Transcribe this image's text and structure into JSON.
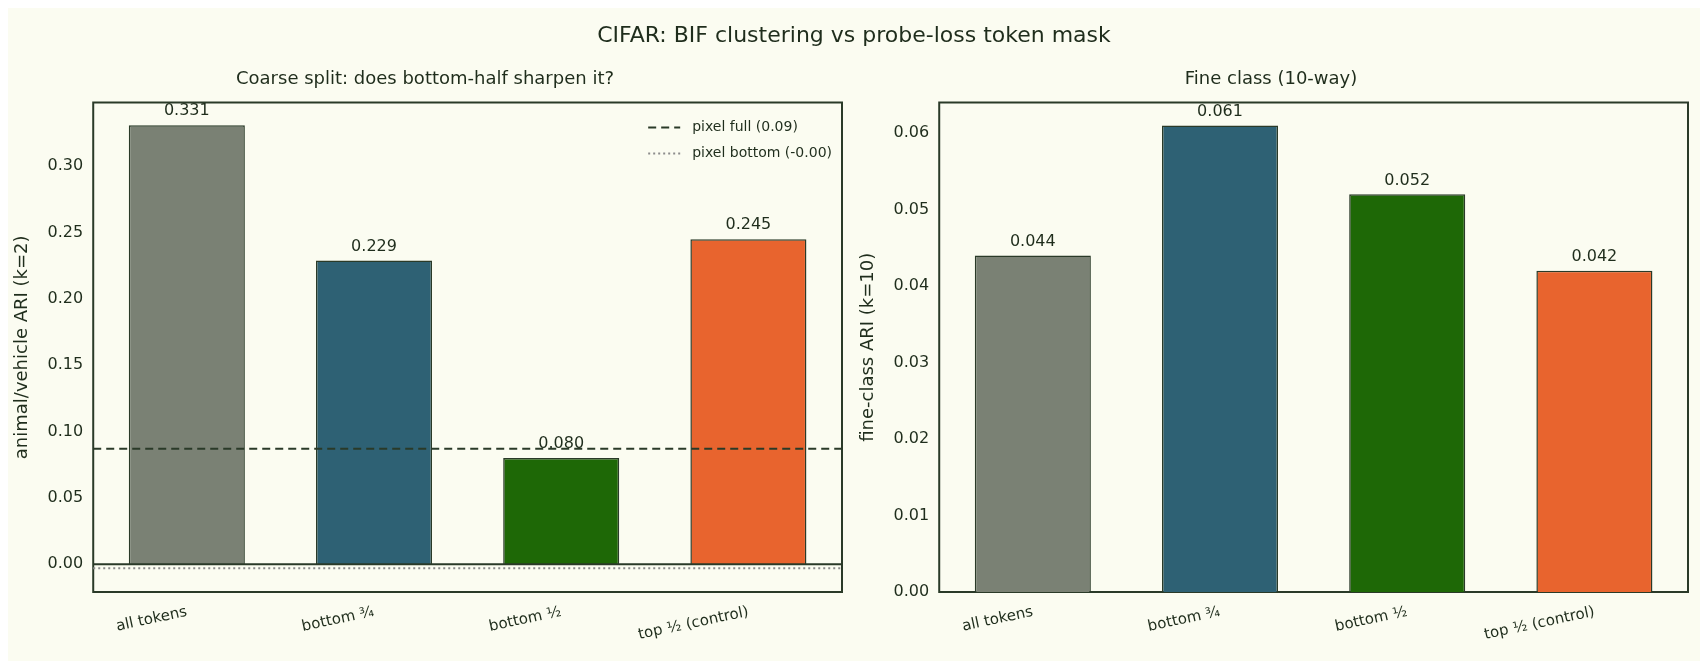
{
  "chart_data": [
    {
      "type": "bar",
      "title": "CIFAR: BIF clustering vs probe-loss token mask",
      "subtitle": "Coarse split: does bottom-half sharpen it?",
      "ylabel": "animal/vehicle ARI (k=2)",
      "categories": [
        "all tokens",
        "bottom ¾",
        "bottom ½",
        "top ½ (control)"
      ],
      "values": [
        0.331,
        0.229,
        0.08,
        0.245
      ],
      "value_labels": [
        "0.331",
        "0.229",
        "0.080",
        "0.245"
      ],
      "colors": [
        "#7a8174",
        "#2e6174",
        "#1e6806",
        "#e8642e"
      ],
      "ylim": [
        -0.021,
        0.348
      ],
      "yticks": [
        {
          "value": 0,
          "label": "0.00"
        },
        0.05,
        {
          "value": 0.1,
          "label": "0.10"
        },
        0.15,
        {
          "value": 0.2,
          "label": "0.20"
        },
        0.25,
        {
          "value": 0.3,
          "label": "0.30"
        }
      ],
      "ref_lines": [
        {
          "axis": "y",
          "value": 0.087,
          "label": "pixel full (0.09)",
          "line_style": "dashed",
          "color": "#2a3a28"
        },
        {
          "axis": "y",
          "value": -0.003,
          "label": "pixel bottom (-0.00)",
          "line_style": "dotted",
          "color": "#8c8c8c"
        },
        {
          "axis": "y",
          "value": 0,
          "line_style": "solid",
          "color": "#2a3a28"
        }
      ],
      "legend": "top right",
      "grid": false
    },
    {
      "type": "bar",
      "subtitle": "Fine class (10-way)",
      "ylabel": "fine-class ARI (k=10)",
      "categories": [
        "all tokens",
        "bottom ¾",
        "bottom ½",
        "top ½ (control)"
      ],
      "values": [
        0.044,
        0.061,
        0.052,
        0.042
      ],
      "data_labels": true,
      "colors": [
        "#7a8174",
        "#2e6174",
        "#1e6806",
        "#e8642e"
      ],
      "ylim": [
        0,
        0.064
      ],
      "yticks": [
        {
          "value": 0,
          "label": "0.00"
        },
        {
          "value": 0.01,
          "label": "0.01"
        },
        {
          "value": 0.02,
          "label": "0.02"
        },
        {
          "value": 0.03,
          "label": "0.03"
        },
        {
          "value": 0.04,
          "label": "0.04"
        },
        {
          "value": 0.05,
          "label": "0.05"
        },
        {
          "value": 0.06,
          "label": "0.06"
        }
      ],
      "grid": false
    }
  ]
}
